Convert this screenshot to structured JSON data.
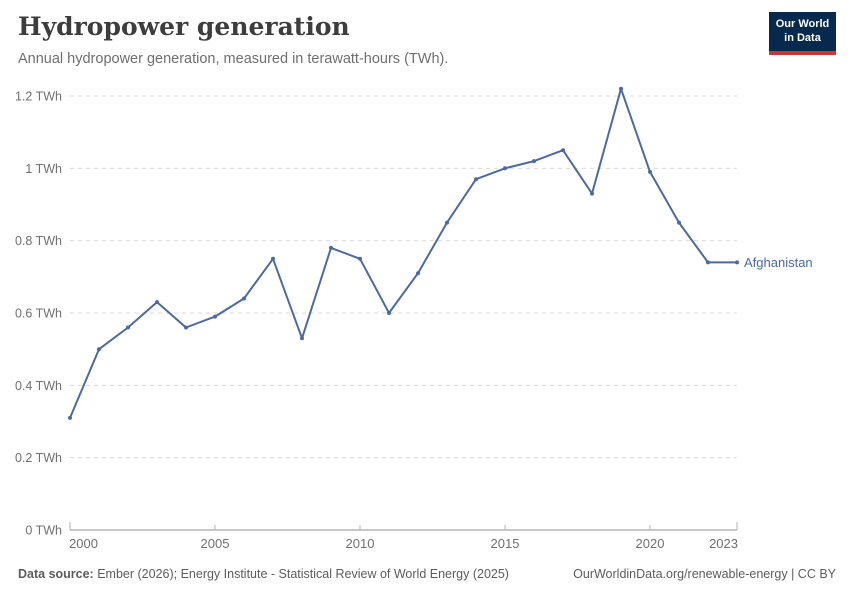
{
  "header": {
    "title": "Hydropower generation",
    "subtitle": "Annual hydropower generation, measured in terawatt-hours (TWh).",
    "logo_line1": "Our World",
    "logo_line2": "in Data"
  },
  "chart_data": {
    "type": "line",
    "title": "Hydropower generation",
    "subtitle": "Annual hydropower generation, measured in terawatt-hours (TWh).",
    "x": [
      2000,
      2001,
      2002,
      2003,
      2004,
      2005,
      2006,
      2007,
      2008,
      2009,
      2010,
      2011,
      2012,
      2013,
      2014,
      2015,
      2016,
      2017,
      2018,
      2019,
      2020,
      2021,
      2022,
      2023
    ],
    "series": [
      {
        "name": "Afghanistan",
        "color": "#4b6aa5",
        "values": [
          0.31,
          0.5,
          0.56,
          0.63,
          0.56,
          0.59,
          0.64,
          0.75,
          0.53,
          0.78,
          0.75,
          0.6,
          0.71,
          0.85,
          0.97,
          1.0,
          1.02,
          1.05,
          0.93,
          1.22,
          0.99,
          0.85,
          0.74,
          0.74
        ]
      }
    ],
    "xlabel": "",
    "ylabel": "TWh",
    "xlim": [
      2000,
      2023
    ],
    "ylim": [
      0,
      1.25
    ],
    "x_ticks": [
      2000,
      2005,
      2010,
      2015,
      2020,
      2023
    ],
    "x_tick_labels": [
      "2000",
      "2005",
      "2010",
      "2015",
      "2020",
      "2023"
    ],
    "y_ticks": [
      0,
      0.2,
      0.4,
      0.6,
      0.8,
      1,
      1.2
    ],
    "y_tick_labels": [
      "0 TWh",
      "0.2 TWh",
      "0.4 TWh",
      "0.6 TWh",
      "0.8 TWh",
      "1 TWh",
      "1.2 TWh"
    ],
    "grid": true,
    "legend_position": "end-of-line entity label"
  },
  "footer": {
    "datasource_label": "Data source:",
    "datasource_text": " Ember (2026); Energy Institute - Statistical Review of World Energy (2025)",
    "link_text": "OurWorldinData.org/renewable-energy | CC BY"
  },
  "colors": {
    "line": "#4b6aa5",
    "gridline": "#dadada",
    "axis": "#8f8f8f",
    "tick_label": "#707070",
    "title_text": "#3d3d3d",
    "subtitle_text": "#6f6f6f",
    "footer_text": "#5c5c5c",
    "logo_navy": "#06294d",
    "logo_red": "#cd3731",
    "background": "#ffffff"
  }
}
